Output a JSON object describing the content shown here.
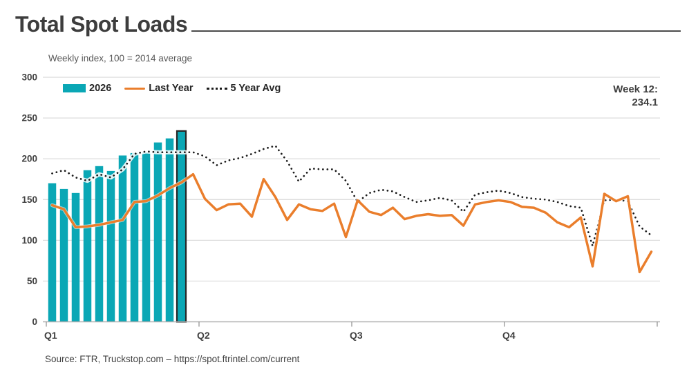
{
  "page": {
    "title": "Total Spot Loads",
    "subtitle": "Weekly index, 100 = 2014 average",
    "source": "Source: FTR, Truckstop.com – https://spot.ftrintel.com/current"
  },
  "annotation": {
    "label": "Week 12:",
    "value": "234.1"
  },
  "legend": {
    "items": [
      {
        "label": "2026",
        "type": "bar-swatch"
      },
      {
        "label": "Last Year",
        "type": "line-swatch"
      },
      {
        "label": "5 Year Avg",
        "type": "dot-swatch"
      }
    ]
  },
  "colors": {
    "bar": "#0aa7b5",
    "bar_highlight_stroke": "#262626",
    "line": "#ea7e2c",
    "dotted": "#1b1b1b",
    "grid": "#d9d9d9",
    "axis": "#b0b0b0",
    "tick": "#8c8c8c",
    "label_text": "#404040"
  },
  "chart_data": {
    "type": "combo",
    "title": "Total Spot Loads",
    "ylabel": "Weekly index, 100 = 2014 average",
    "xlabel": "",
    "weeks": 52,
    "ylim": [
      0,
      300
    ],
    "yticks": [
      0,
      50,
      100,
      150,
      200,
      250,
      300
    ],
    "x_ticks": [
      {
        "label": "Q1",
        "week": 1
      },
      {
        "label": "Q2",
        "week": 14
      },
      {
        "label": "Q3",
        "week": 27
      },
      {
        "label": "Q4",
        "week": 40
      },
      {
        "label": "",
        "week": 53
      }
    ],
    "grid": "horizontal",
    "legend_position": "top-left-inside",
    "series": [
      {
        "name": "2026",
        "type": "bar",
        "color": "#0aa7b5",
        "highlight_week": 12,
        "highlight_value": 234.1,
        "values": [
          170,
          163,
          158,
          186,
          191,
          185,
          204,
          207,
          208,
          220,
          225,
          234.1
        ]
      },
      {
        "name": "Last Year",
        "type": "line",
        "color": "#ea7e2c",
        "values": [
          143,
          138,
          116,
          117,
          119,
          122,
          125,
          147,
          148,
          155,
          164,
          171,
          181,
          151,
          137,
          144,
          145,
          129,
          175,
          153,
          125,
          144,
          138,
          136,
          145,
          104,
          149,
          135,
          131,
          140,
          126,
          130,
          132,
          130,
          131,
          118,
          144,
          147,
          149,
          147,
          141,
          140,
          134,
          122,
          116,
          128,
          68,
          157,
          148,
          154,
          61,
          86
        ]
      },
      {
        "name": "5 Year Avg",
        "type": "dotted",
        "color": "#1b1b1b",
        "values": [
          182,
          186,
          177,
          173,
          181,
          177,
          187,
          206,
          209,
          208,
          208,
          208,
          208,
          203,
          192,
          198,
          201,
          206,
          212,
          216,
          197,
          172,
          188,
          187,
          187,
          173,
          147,
          158,
          162,
          160,
          153,
          147,
          149,
          152,
          149,
          135,
          156,
          159,
          161,
          158,
          153,
          151,
          150,
          147,
          142,
          140,
          93,
          149,
          150,
          148,
          117,
          106
        ]
      }
    ]
  }
}
